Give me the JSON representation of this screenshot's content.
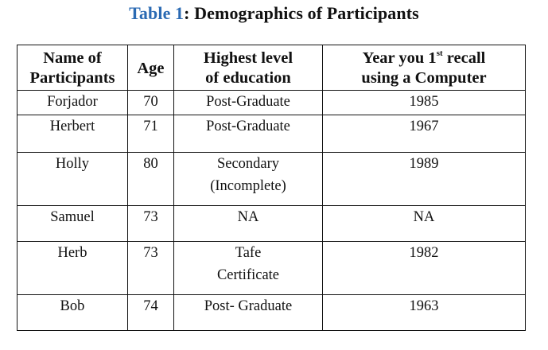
{
  "caption": {
    "label": "Table 1",
    "text": ": Demographics of Participants"
  },
  "table": {
    "headers": {
      "name_line1": "Name of",
      "name_line2": "Participants",
      "age": "Age",
      "edu_line1": "Highest level",
      "edu_line2": "of education",
      "year_prefix": "Year you 1",
      "year_sup": "st",
      "year_suffix": " recall",
      "year_line2": "using a Computer"
    },
    "rows": [
      {
        "name": "Forjador",
        "age": "70",
        "edu_line1": "Post-Graduate",
        "edu_line2": "",
        "year": "1985"
      },
      {
        "name": "Herbert",
        "age": "71",
        "edu_line1": "Post-Graduate",
        "edu_line2": "",
        "year": "1967"
      },
      {
        "name": "Holly",
        "age": "80",
        "edu_line1": "Secondary",
        "edu_line2": "(Incomplete)",
        "year": "1989"
      },
      {
        "name": "Samuel",
        "age": "73",
        "edu_line1": "NA",
        "edu_line2": "",
        "year": "NA"
      },
      {
        "name": "Herb",
        "age": "73",
        "edu_line1": "Tafe",
        "edu_line2": "Certificate",
        "year": "1982"
      },
      {
        "name": "Bob",
        "age": "74",
        "edu_line1": "Post- Graduate",
        "edu_line2": "",
        "year": "1963"
      }
    ]
  }
}
